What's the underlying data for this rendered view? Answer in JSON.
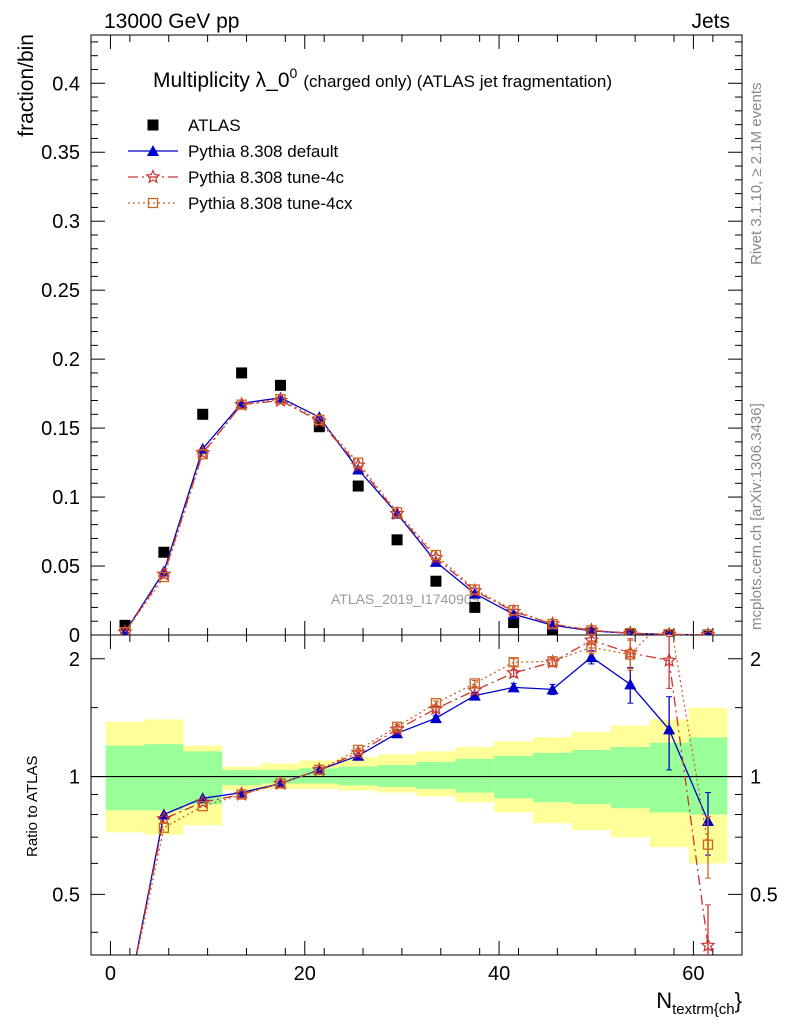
{
  "header": {
    "left": "13000 GeV pp",
    "right": "Jets"
  },
  "side": {
    "top": "Rivet 3.1.10, ≥ 2.1M events",
    "bottom": "mcplots.cern.ch [arXiv:1306.3436]"
  },
  "watermark": "ATLAS_2019_I1740909",
  "chart_data": {
    "type": "line",
    "title": "Multiplicity λ_0",
    "title_sup": "0",
    "title_rest": "(charged only) (ATLAS jet fragmentation)",
    "ylabel": "fraction/bin",
    "xlabel": "N",
    "xlabel_sub": "textrm{ch",
    "xlabel_tail": "}",
    "ratio_ylabel": "Ratio to ATLAS",
    "xlim": [
      -2,
      65
    ],
    "ylim": [
      0,
      0.435
    ],
    "ratio_ylim": [
      0.35,
      2.3
    ],
    "x_ticks": [
      0,
      20,
      40,
      60
    ],
    "y_ticks": [
      0,
      0.05,
      0.1,
      0.15,
      0.2,
      0.25,
      0.3,
      0.35,
      0.4
    ],
    "y_tick_labels": [
      "0",
      "0.05",
      "0.1",
      "0.15",
      "0.2",
      "0.25",
      "0.3",
      "0.35",
      "0.4"
    ],
    "ratio_ticks": [
      0.5,
      1,
      2
    ],
    "ratio_tick_labels": [
      "0.5",
      "1",
      "2"
    ],
    "x": [
      1.5,
      5.5,
      9.5,
      13.5,
      17.5,
      21.5,
      25.5,
      29.5,
      33.5,
      37.5,
      41.5,
      45.5,
      49.5,
      53.5,
      57.5,
      61.5
    ],
    "bin_edges": [
      -0.5,
      3.5,
      7.5,
      11.5,
      15.5,
      19.5,
      23.5,
      27.5,
      31.5,
      35.5,
      39.5,
      43.5,
      47.5,
      51.5,
      55.5,
      59.5,
      63.5
    ],
    "band_inner": [
      [
        0.82,
        1.2
      ],
      [
        0.82,
        1.21
      ],
      [
        0.85,
        1.16
      ],
      [
        0.95,
        1.04
      ],
      [
        0.96,
        1.04
      ],
      [
        0.96,
        1.05
      ],
      [
        0.95,
        1.06
      ],
      [
        0.94,
        1.07
      ],
      [
        0.93,
        1.09
      ],
      [
        0.91,
        1.11
      ],
      [
        0.88,
        1.13
      ],
      [
        0.86,
        1.15
      ],
      [
        0.85,
        1.17
      ],
      [
        0.83,
        1.19
      ],
      [
        0.81,
        1.22
      ],
      [
        0.8,
        1.26
      ]
    ],
    "band_outer": [
      [
        0.72,
        1.38
      ],
      [
        0.71,
        1.4
      ],
      [
        0.75,
        1.2
      ],
      [
        0.92,
        1.06
      ],
      [
        0.93,
        1.08
      ],
      [
        0.93,
        1.1
      ],
      [
        0.92,
        1.12
      ],
      [
        0.91,
        1.14
      ],
      [
        0.89,
        1.16
      ],
      [
        0.86,
        1.19
      ],
      [
        0.81,
        1.23
      ],
      [
        0.76,
        1.26
      ],
      [
        0.73,
        1.3
      ],
      [
        0.7,
        1.35
      ],
      [
        0.66,
        1.4
      ],
      [
        0.6,
        1.5
      ]
    ],
    "ref_line": 1,
    "series": [
      {
        "name": "ATLAS",
        "color": "#000000",
        "marker": "square-filled",
        "dash": "none",
        "values": [
          0.007,
          0.06,
          0.16,
          0.19,
          0.181,
          0.151,
          0.108,
          0.069,
          0.039,
          0.02,
          0.009,
          0.004,
          0.0015,
          0.0006,
          0.0002,
          5e-05
        ]
      },
      {
        "name": "Pythia 8.308 default",
        "color": "#0000cc",
        "marker": "triangle-filled",
        "dash": "none",
        "values": [
          0.002,
          0.046,
          0.135,
          0.168,
          0.172,
          0.158,
          0.12,
          0.088,
          0.053,
          0.03,
          0.015,
          0.007,
          0.003,
          0.0012,
          0.0004,
          0.0001
        ],
        "ratio": [
          0.25,
          0.8,
          0.88,
          0.91,
          0.96,
          1.04,
          1.13,
          1.29,
          1.41,
          1.61,
          1.69,
          1.67,
          2.02,
          1.72,
          1.32,
          0.77
        ],
        "ratio_err": [
          0,
          0,
          0,
          0,
          0,
          0,
          0.01,
          0.02,
          0.02,
          0.03,
          0.04,
          0.05,
          0.08,
          0.18,
          0.28,
          0.14
        ]
      },
      {
        "name": "Pythia 8.308 tune-4c",
        "color": "#cc3333",
        "marker": "star-open",
        "dash": "10,4,2,4",
        "values": [
          0.002,
          0.044,
          0.132,
          0.167,
          0.17,
          0.155,
          0.123,
          0.088,
          0.056,
          0.032,
          0.017,
          0.008,
          0.0033,
          0.0013,
          0.0004,
          0.0001
        ],
        "ratio": [
          0.25,
          0.78,
          0.86,
          0.9,
          0.96,
          1.04,
          1.15,
          1.32,
          1.49,
          1.66,
          1.84,
          1.96,
          2.23,
          2.07,
          1.98,
          0.37
        ],
        "ratio_err": [
          0,
          0,
          0,
          0,
          0,
          0,
          0.01,
          0.02,
          0.02,
          0.03,
          0.04,
          0.05,
          0.1,
          0.18,
          0.3,
          0.1
        ]
      },
      {
        "name": "Pythia 8.308 tune-4cx",
        "color": "#cc6622",
        "marker": "square-open",
        "dash": "2,3",
        "values": [
          0.002,
          0.042,
          0.131,
          0.167,
          0.171,
          0.156,
          0.125,
          0.089,
          0.058,
          0.033,
          0.018,
          0.008,
          0.0034,
          0.0013,
          0.0005,
          0.0001
        ],
        "ratio": [
          0.25,
          0.74,
          0.84,
          0.9,
          0.96,
          1.04,
          1.17,
          1.34,
          1.54,
          1.73,
          1.96,
          1.97,
          2.14,
          2.05,
          2.6,
          0.67
        ],
        "ratio_err": [
          0,
          0,
          0,
          0,
          0,
          0,
          0.01,
          0.02,
          0.02,
          0.03,
          0.04,
          0.05,
          0.08,
          0.18,
          0.3,
          0.12
        ]
      }
    ],
    "legend_placement": "top-left"
  }
}
